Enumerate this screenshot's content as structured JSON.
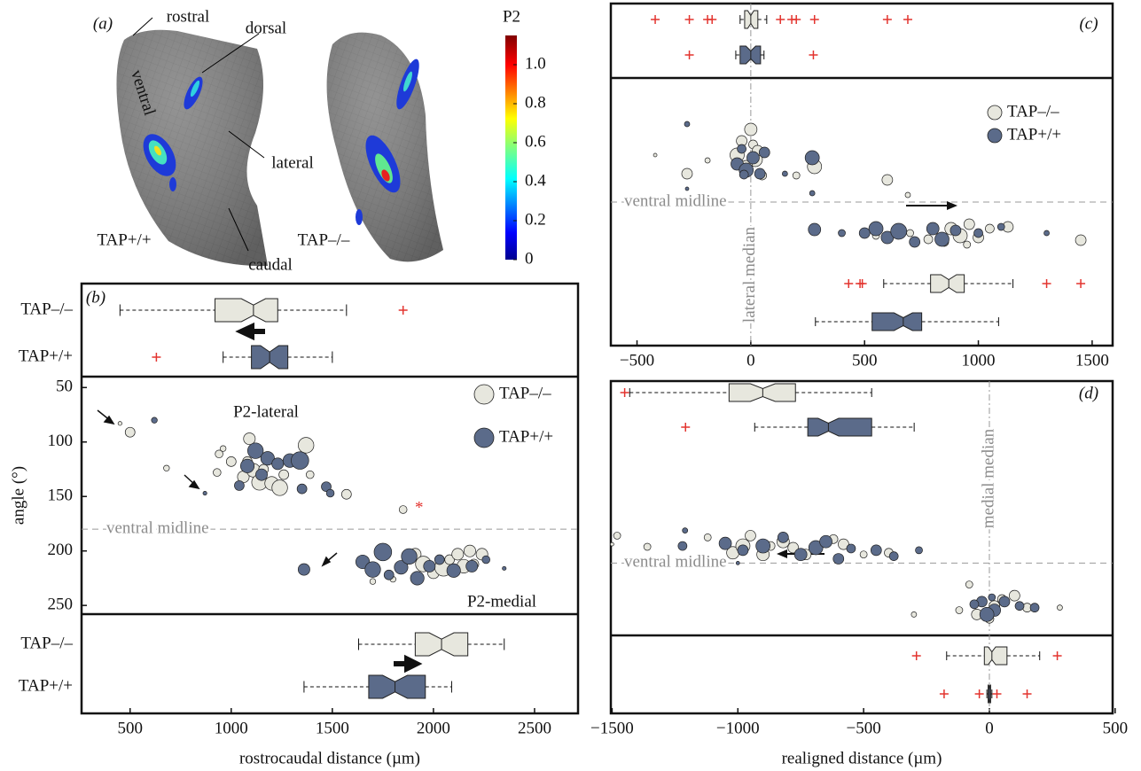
{
  "chart_data": [
    {
      "type": "surface",
      "annotations": [
        "(a)",
        "rostral",
        "dorsal",
        "ventral",
        "lateral",
        "caudal",
        "TAP+/+",
        "TAP–/–"
      ],
      "colorbar_label": "P2",
      "clim": [
        0,
        1.15
      ],
      "cticks": [
        0,
        0.2,
        0.4,
        0.6,
        0.8,
        {
          "value": 1,
          "label": "1.0"
        }
      ]
    },
    {
      "type": "scatter",
      "panel_label": "(b)",
      "xlabel": "rostrocaudal distance (µm)",
      "ylabel": "angle (°)",
      "annotations": [
        "P2-lateral",
        "P2-medial"
      ],
      "midline": 180,
      "midline_label": "ventral midline",
      "xlim": [
        260,
        2715
      ],
      "ylim": [
        40,
        258
      ],
      "y_inverted": true,
      "xticks": [
        500,
        1000,
        1500,
        2000,
        2500
      ],
      "yticks": [
        50,
        100,
        150,
        200,
        250
      ],
      "flier_color": "#e3342f",
      "series": [
        {
          "name": "TAP–/–",
          "color": "#e7e7de",
          "x": [
            500,
            680,
            930,
            940,
            960,
            1000,
            1060,
            1080,
            1090,
            1110,
            1140,
            1160,
            1200,
            1240,
            1260,
            1370,
            1390,
            1570,
            1850,
            1910,
            1950,
            2000,
            2050,
            2080,
            2120,
            2150,
            2180,
            2200,
            2240,
            1700,
            1800,
            450
          ],
          "y": [
            91,
            124,
            128,
            111,
            106,
            118,
            132,
            118,
            97,
            126,
            137,
            125,
            138,
            142,
            130,
            103,
            130,
            148,
            162,
            203,
            212,
            220,
            215,
            208,
            203,
            214,
            200,
            212,
            203,
            228,
            226,
            83
          ],
          "sizes": [
            5,
            3,
            4,
            4,
            3,
            5,
            6,
            5,
            6,
            7,
            8,
            5,
            7,
            8,
            5,
            8,
            4,
            5,
            4,
            6,
            8,
            6,
            9,
            5,
            6,
            7,
            6,
            5,
            6,
            3,
            3,
            2
          ]
        },
        {
          "name": "TAP+/+",
          "color": "#5b6b8a",
          "x": [
            620,
            1040,
            1080,
            1120,
            1150,
            1180,
            1230,
            1290,
            1340,
            1350,
            1470,
            1490,
            1360,
            1650,
            1700,
            1750,
            1780,
            1840,
            1880,
            1920,
            1980,
            2030,
            2100,
            2190,
            2260,
            870,
            2350
          ],
          "y": [
            80,
            140,
            122,
            108,
            130,
            115,
            120,
            117,
            117,
            143,
            141,
            147,
            217,
            210,
            217,
            201,
            222,
            215,
            205,
            225,
            214,
            208,
            218,
            214,
            208,
            147,
            216
          ],
          "sizes": [
            3,
            5,
            7,
            8,
            6,
            7,
            6,
            7,
            9,
            5,
            5,
            4,
            6,
            7,
            8,
            9,
            5,
            7,
            8,
            7,
            6,
            5,
            7,
            6,
            4,
            2,
            2
          ]
        }
      ],
      "top_boxes": [
        {
          "whislo": 450,
          "q1": 920,
          "med": 1110,
          "q3": 1230,
          "whishi": 1570,
          "fliers": [
            1850
          ]
        },
        {
          "whislo": 960,
          "q1": 1100,
          "med": 1190,
          "q3": 1280,
          "whishi": 1500,
          "fliers": [
            630
          ]
        }
      ],
      "bottom_boxes": [
        {
          "whislo": 1630,
          "q1": 1910,
          "med": 2040,
          "q3": 2170,
          "whishi": 2350,
          "fliers": []
        },
        {
          "whislo": 1360,
          "q1": 1680,
          "med": 1810,
          "q3": 1960,
          "whishi": 2090,
          "fliers": []
        }
      ]
    },
    {
      "type": "scatter",
      "panel_label": "(c)",
      "midline": 180,
      "midline_label": "ventral midline",
      "median_line": 0,
      "median_label": "lateral median",
      "xlim": [
        -615,
        1590
      ],
      "ylim": [
        40,
        252
      ],
      "y_inverted": true,
      "xticks": [
        {
          "value": -500,
          "label": "−500"
        },
        0,
        500,
        1000,
        1500
      ],
      "flier_color": "#e3342f",
      "series": [
        {
          "name": "TAP–/–",
          "color": "#e7e7de",
          "x": [
            -420,
            -280,
            -190,
            -40,
            0,
            10,
            20,
            30,
            -20,
            50,
            -60,
            280,
            200,
            600,
            690,
            880,
            920,
            960,
            1000,
            850,
            1050,
            1130,
            1450,
            700,
            780,
            950,
            550
          ],
          "y": [
            127,
            148,
            133,
            111,
            98,
            115,
            132,
            122,
            140,
            150,
            127,
            140,
            150,
            155,
            172,
            210,
            218,
            205,
            220,
            225,
            210,
            208,
            223,
            215,
            222,
            228,
            218
          ],
          "sizes": [
            2,
            6,
            3,
            6,
            7,
            5,
            8,
            6,
            7,
            5,
            8,
            8,
            4,
            6,
            3,
            7,
            8,
            6,
            6,
            5,
            5,
            6,
            6,
            4,
            5,
            4,
            4
          ]
        },
        {
          "name": "TAP+/+",
          "color": "#5b6b8a",
          "x": [
            -280,
            -60,
            -20,
            10,
            40,
            -40,
            60,
            270,
            150,
            -280,
            270,
            280,
            -30,
            550,
            600,
            650,
            500,
            400,
            720,
            800,
            840,
            900,
            1000,
            1100,
            1300
          ],
          "y": [
            92,
            137,
            144,
            130,
            148,
            120,
            124,
            130,
            148,
            165,
            170,
            211,
            149,
            210,
            220,
            213,
            215,
            215,
            225,
            210,
            222,
            212,
            215,
            208,
            215
          ],
          "sizes": [
            3,
            7,
            8,
            7,
            6,
            5,
            6,
            8,
            3,
            2,
            3,
            7,
            5,
            8,
            7,
            9,
            6,
            4,
            6,
            7,
            8,
            6,
            5,
            4,
            3
          ]
        }
      ],
      "top_boxes": [
        {
          "whislo": -47,
          "q1": -27,
          "med": 0,
          "q3": 31,
          "whishi": 70,
          "fliers": [
            -420,
            -270,
            -190,
            -170,
            130,
            180,
            200,
            280,
            600,
            690
          ]
        },
        {
          "whislo": -66,
          "q1": -47,
          "med": 0,
          "q3": 43,
          "whishi": 58,
          "fliers": [
            -270,
            275
          ]
        }
      ],
      "bottom_boxes": [
        {
          "whislo": 584,
          "q1": 790,
          "med": 870,
          "q3": 938,
          "whishi": 1152,
          "fliers": [
            430,
            480,
            490,
            1300,
            1450
          ]
        },
        {
          "whislo": 284,
          "q1": 533,
          "med": 670,
          "q3": 751,
          "whishi": 1089,
          "fliers": []
        }
      ]
    },
    {
      "type": "scatter",
      "panel_label": "(d)",
      "xlabel": "realigned distance (µm)",
      "midline": 180,
      "midline_label": "ventral midline",
      "median_line": 0,
      "median_label": "medial median",
      "xlim": [
        -1505,
        490
      ],
      "ylim": [
        40,
        252
      ],
      "y_inverted": true,
      "xticks": [
        {
          "value": -1500,
          "label": "−1500"
        },
        {
          "value": -1000,
          "label": "−1000"
        },
        {
          "value": -500,
          "label": "−500"
        },
        0,
        500
      ],
      "flier_color": "#e3342f",
      "series": [
        {
          "name": "TAP–/–",
          "color": "#e7e7de",
          "x": [
            -1480,
            -1500,
            -1360,
            -1120,
            -1050,
            -1020,
            -980,
            -950,
            -900,
            -870,
            -820,
            -780,
            -730,
            -620,
            -580,
            -500,
            -400,
            -80,
            20,
            50,
            100,
            150,
            -50,
            -120,
            0,
            -300,
            280
          ],
          "y": [
            148,
            158,
            161,
            150,
            157,
            168,
            160,
            148,
            170,
            160,
            155,
            162,
            170,
            152,
            158,
            170,
            168,
            205,
            230,
            222,
            218,
            232,
            240,
            235,
            245,
            240,
            232
          ],
          "sizes": [
            4,
            2,
            4,
            4,
            5,
            7,
            8,
            6,
            7,
            5,
            7,
            6,
            6,
            5,
            6,
            4,
            5,
            4,
            6,
            5,
            6,
            5,
            6,
            4,
            5,
            3,
            3
          ]
        },
        {
          "name": "TAP+/+",
          "color": "#5b6b8a",
          "x": [
            -1220,
            -1210,
            -1050,
            -980,
            -900,
            -820,
            -750,
            -690,
            -650,
            -600,
            -550,
            -450,
            -380,
            -280,
            -1000,
            -30,
            20,
            -10,
            60,
            120,
            180,
            -60,
            10
          ],
          "y": [
            160,
            142,
            157,
            165,
            160,
            150,
            170,
            162,
            155,
            175,
            163,
            165,
            172,
            165,
            180,
            225,
            235,
            240,
            225,
            230,
            232,
            228,
            220
          ],
          "sizes": [
            5,
            3,
            7,
            6,
            8,
            6,
            7,
            8,
            7,
            6,
            5,
            6,
            5,
            4,
            2,
            6,
            7,
            8,
            6,
            5,
            5,
            5,
            4
          ]
        }
      ],
      "top_boxes": [
        {
          "whislo": -1430,
          "q1": -1035,
          "med": -901,
          "q3": -771,
          "whishi": -468,
          "fliers": [
            -1450
          ]
        },
        {
          "whislo": -933,
          "q1": -722,
          "med": -640,
          "q3": -468,
          "whishi": -299,
          "fliers": [
            -1208
          ]
        }
      ],
      "bottom_boxes": [
        {
          "whislo": -170,
          "q1": -20,
          "med": 10,
          "q3": 70,
          "whishi": 200,
          "fliers": [
            -290,
            270
          ]
        },
        {
          "whislo": -10,
          "q1": -5,
          "med": 0,
          "q3": 5,
          "whishi": 10,
          "fliers": [
            -180,
            -40,
            30,
            150
          ]
        }
      ]
    }
  ]
}
